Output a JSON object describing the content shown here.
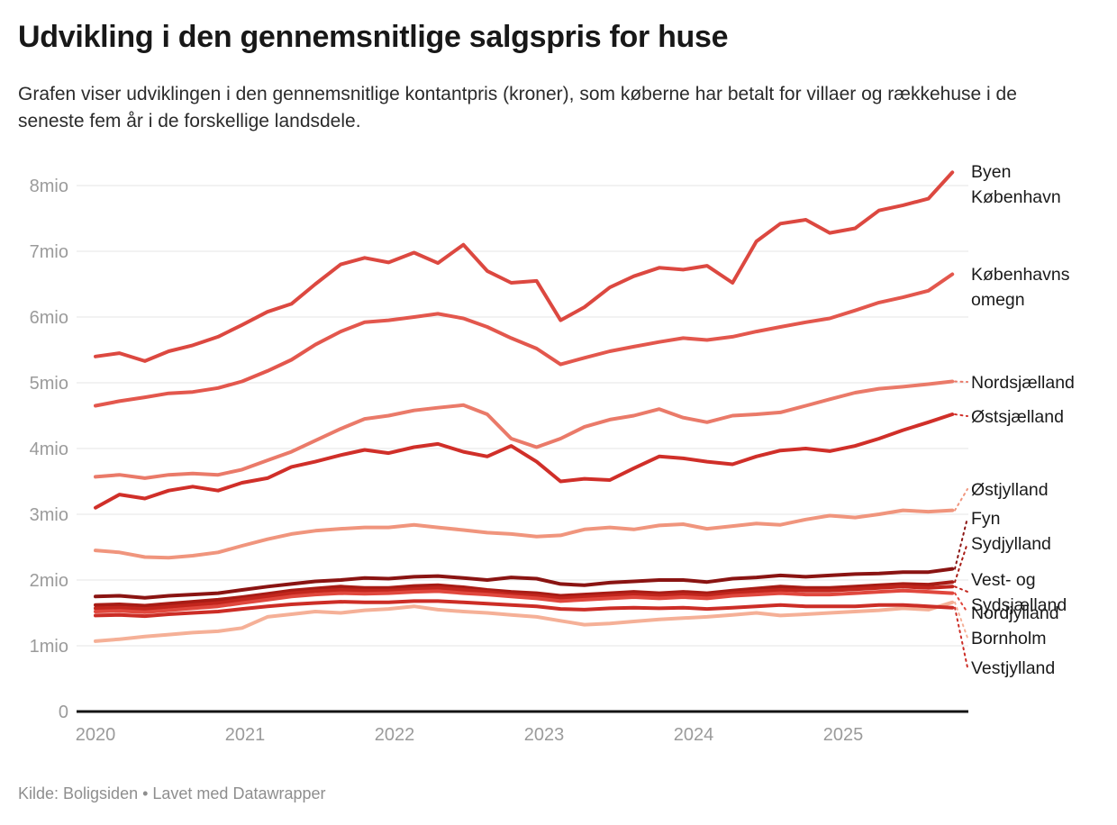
{
  "header": {
    "title": "Udvikling i den gennemsnitlige salgspris for huse",
    "subtitle": "Grafen viser udviklingen i den gennemsnitlige kontantpris (kroner), som køberne har betalt for villaer og rækkehuse i de seneste fem år i de forskellige landsdele."
  },
  "footer": {
    "text": "Kilde: Boligsiden • Lavet med Datawrapper"
  },
  "chart_data": {
    "type": "line",
    "title": "Udvikling i den gennemsnitlige salgspris for huse",
    "unit": "kroner",
    "value_scale": "millioner kroner",
    "grid": "horizontal",
    "legend_position": "right-direct-labels",
    "xlim": [
      2020,
      2025.85
    ],
    "ylim": [
      0,
      8.6
    ],
    "x_ticks": [
      "2020",
      "2021",
      "2022",
      "2023",
      "2024",
      "2025"
    ],
    "y_ticks": [
      "0",
      "1mio",
      "2mio",
      "3mio",
      "4mio",
      "5mio",
      "6mio",
      "7mio",
      "8mio"
    ],
    "x": [
      2020.0,
      2020.16,
      2020.33,
      2020.49,
      2020.65,
      2020.82,
      2020.98,
      2021.15,
      2021.31,
      2021.47,
      2021.64,
      2021.8,
      2021.96,
      2022.13,
      2022.29,
      2022.46,
      2022.62,
      2022.78,
      2022.95,
      2023.11,
      2023.27,
      2023.44,
      2023.6,
      2023.77,
      2023.93,
      2024.09,
      2024.26,
      2024.42,
      2024.58,
      2024.75,
      2024.91,
      2025.08,
      2025.24,
      2025.4,
      2025.57,
      2025.73
    ],
    "series": [
      {
        "name": "Byen København",
        "label_lines": [
          "Byen",
          "København"
        ],
        "color": "#dc4840",
        "values": [
          5.4,
          5.45,
          5.33,
          5.48,
          5.57,
          5.7,
          5.88,
          6.08,
          6.2,
          6.5,
          6.8,
          6.9,
          6.83,
          6.98,
          6.82,
          7.1,
          6.7,
          6.52,
          6.55,
          5.95,
          6.15,
          6.45,
          6.62,
          6.75,
          6.72,
          6.78,
          6.52,
          7.15,
          7.42,
          7.48,
          7.28,
          7.35,
          7.62,
          7.7,
          7.8,
          8.2
        ]
      },
      {
        "name": "Københavns omegn",
        "label_lines": [
          "Københavns",
          "omegn"
        ],
        "color": "#e3574d",
        "values": [
          4.65,
          4.72,
          4.78,
          4.84,
          4.86,
          4.92,
          5.02,
          5.18,
          5.35,
          5.58,
          5.78,
          5.92,
          5.95,
          6.0,
          6.05,
          5.98,
          5.85,
          5.68,
          5.52,
          5.28,
          5.38,
          5.48,
          5.55,
          5.62,
          5.68,
          5.65,
          5.7,
          5.78,
          5.85,
          5.92,
          5.98,
          6.1,
          6.22,
          6.3,
          6.4,
          6.65
        ]
      },
      {
        "name": "Nordsjælland",
        "label_lines": [
          "Nordsjælland"
        ],
        "color": "#ea7a69",
        "values": [
          3.57,
          3.6,
          3.55,
          3.6,
          3.62,
          3.6,
          3.68,
          3.82,
          3.95,
          4.12,
          4.3,
          4.45,
          4.5,
          4.58,
          4.62,
          4.66,
          4.52,
          4.15,
          4.02,
          4.15,
          4.33,
          4.44,
          4.5,
          4.6,
          4.47,
          4.4,
          4.5,
          4.52,
          4.55,
          4.65,
          4.75,
          4.85,
          4.91,
          4.94,
          4.98,
          5.02
        ]
      },
      {
        "name": "Østsjælland",
        "label_lines": [
          "Østsjælland"
        ],
        "color": "#d02f29",
        "values": [
          3.1,
          3.3,
          3.24,
          3.36,
          3.42,
          3.36,
          3.48,
          3.55,
          3.72,
          3.8,
          3.9,
          3.98,
          3.93,
          4.02,
          4.07,
          3.95,
          3.88,
          4.04,
          3.8,
          3.5,
          3.54,
          3.52,
          3.7,
          3.88,
          3.85,
          3.8,
          3.76,
          3.88,
          3.97,
          4.0,
          3.96,
          4.04,
          4.15,
          4.28,
          4.4,
          4.52
        ]
      },
      {
        "name": "Østjylland",
        "label_lines": [
          "Østjylland"
        ],
        "color": "#f0957d",
        "values": [
          2.45,
          2.42,
          2.35,
          2.34,
          2.37,
          2.42,
          2.52,
          2.62,
          2.7,
          2.75,
          2.78,
          2.8,
          2.8,
          2.84,
          2.8,
          2.76,
          2.72,
          2.7,
          2.66,
          2.68,
          2.77,
          2.8,
          2.77,
          2.83,
          2.85,
          2.78,
          2.82,
          2.86,
          2.84,
          2.92,
          2.98,
          2.95,
          3.0,
          3.06,
          3.04,
          3.06
        ]
      },
      {
        "name": "Fyn",
        "label_lines": [
          "Fyn"
        ],
        "color": "#8a1412",
        "values": [
          1.75,
          1.76,
          1.73,
          1.76,
          1.78,
          1.8,
          1.85,
          1.9,
          1.94,
          1.98,
          2.0,
          2.03,
          2.02,
          2.05,
          2.06,
          2.03,
          2.0,
          2.04,
          2.02,
          1.94,
          1.92,
          1.96,
          1.98,
          2.0,
          2.0,
          1.97,
          2.02,
          2.04,
          2.07,
          2.05,
          2.07,
          2.09,
          2.1,
          2.12,
          2.12,
          2.17
        ]
      },
      {
        "name": "Sydjylland",
        "label_lines": [
          "Sydjylland"
        ],
        "color": "#a81c15",
        "values": [
          1.62,
          1.63,
          1.61,
          1.64,
          1.67,
          1.7,
          1.74,
          1.79,
          1.84,
          1.87,
          1.9,
          1.88,
          1.88,
          1.91,
          1.92,
          1.89,
          1.85,
          1.82,
          1.8,
          1.76,
          1.78,
          1.8,
          1.82,
          1.8,
          1.82,
          1.8,
          1.84,
          1.87,
          1.9,
          1.88,
          1.88,
          1.9,
          1.92,
          1.94,
          1.93,
          1.97
        ]
      },
      {
        "name": "Vest- og Sydsjælland",
        "label_lines": [
          "Vest- og",
          "Sydsjælland"
        ],
        "color": "#c2261d",
        "values": [
          1.57,
          1.58,
          1.56,
          1.59,
          1.62,
          1.65,
          1.7,
          1.75,
          1.8,
          1.83,
          1.85,
          1.84,
          1.84,
          1.86,
          1.88,
          1.85,
          1.82,
          1.78,
          1.76,
          1.72,
          1.74,
          1.76,
          1.78,
          1.76,
          1.78,
          1.76,
          1.8,
          1.83,
          1.85,
          1.84,
          1.84,
          1.86,
          1.88,
          1.9,
          1.88,
          1.9
        ]
      },
      {
        "name": "Nordjylland",
        "label_lines": [
          "Nordjylland"
        ],
        "color": "#e0473d",
        "values": [
          1.52,
          1.53,
          1.51,
          1.54,
          1.57,
          1.6,
          1.65,
          1.7,
          1.75,
          1.78,
          1.8,
          1.79,
          1.8,
          1.82,
          1.83,
          1.8,
          1.78,
          1.75,
          1.72,
          1.68,
          1.7,
          1.72,
          1.74,
          1.72,
          1.74,
          1.72,
          1.76,
          1.78,
          1.8,
          1.78,
          1.78,
          1.8,
          1.82,
          1.84,
          1.82,
          1.8
        ]
      },
      {
        "name": "Bornholm",
        "label_lines": [
          "Bornholm"
        ],
        "color": "#f5b097",
        "values": [
          1.07,
          1.1,
          1.14,
          1.17,
          1.2,
          1.22,
          1.27,
          1.44,
          1.48,
          1.52,
          1.5,
          1.54,
          1.56,
          1.6,
          1.55,
          1.52,
          1.5,
          1.47,
          1.44,
          1.38,
          1.32,
          1.34,
          1.37,
          1.4,
          1.42,
          1.44,
          1.47,
          1.5,
          1.46,
          1.48,
          1.5,
          1.52,
          1.54,
          1.57,
          1.55,
          1.66
        ]
      },
      {
        "name": "Vestjylland",
        "label_lines": [
          "Vestjylland"
        ],
        "color": "#cc2d26",
        "values": [
          1.46,
          1.47,
          1.45,
          1.48,
          1.5,
          1.52,
          1.56,
          1.6,
          1.63,
          1.65,
          1.67,
          1.66,
          1.66,
          1.68,
          1.68,
          1.66,
          1.64,
          1.62,
          1.6,
          1.56,
          1.55,
          1.57,
          1.58,
          1.57,
          1.58,
          1.56,
          1.58,
          1.6,
          1.62,
          1.6,
          1.6,
          1.6,
          1.62,
          1.62,
          1.6,
          1.58
        ]
      }
    ]
  }
}
